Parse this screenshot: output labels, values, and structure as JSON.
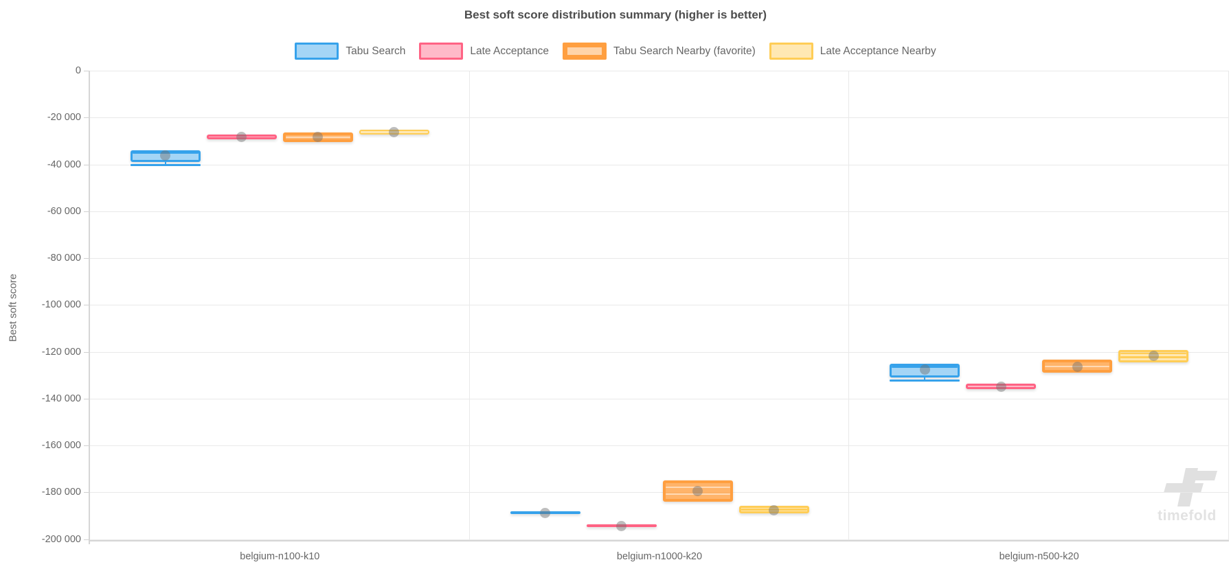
{
  "chart_data": {
    "type": "boxplot",
    "title": "Best soft score distribution summary (higher is better)",
    "ylabel": "Best soft score",
    "ylim": [
      -200000,
      0
    ],
    "grid": true,
    "legend_position": "top",
    "watermark_text": "timefold",
    "yticks": [
      {
        "value": 0,
        "label": "0"
      },
      {
        "value": -20000,
        "label": "-20 000"
      },
      {
        "value": -40000,
        "label": "-40 000"
      },
      {
        "value": -60000,
        "label": "-60 000"
      },
      {
        "value": -80000,
        "label": "-80 000"
      },
      {
        "value": -100000,
        "label": "-100 000"
      },
      {
        "value": -120000,
        "label": "-120 000"
      },
      {
        "value": -140000,
        "label": "-140 000"
      },
      {
        "value": -160000,
        "label": "-160 000"
      },
      {
        "value": -180000,
        "label": "-180 000"
      },
      {
        "value": -200000,
        "label": "-200 000"
      }
    ],
    "categories": [
      "belgium-n100-k10",
      "belgium-n1000-k20",
      "belgium-n500-k20"
    ],
    "series": [
      {
        "name": "Tabu Search",
        "color": "#36A2EB",
        "fill": "rgba(54,162,235,0.45)",
        "legend_fill": "rgba(54,162,235,0.45)",
        "favorite": false,
        "boxes": [
          {
            "q1": -39000,
            "q3": -34000,
            "median": -35000,
            "mean": -36100,
            "whisker_low": -40200
          },
          {
            "q1": -189400,
            "q3": -188100,
            "median": -188700,
            "mean": -188900
          },
          {
            "q1": -131100,
            "q3": -125200,
            "median": -126400,
            "mean": -127600,
            "whisker_low": -132200
          }
        ]
      },
      {
        "name": "Late Acceptance",
        "color": "#FF6384",
        "fill": "rgba(255,99,132,0.45)",
        "legend_fill": "rgba(255,99,132,0.45)",
        "favorite": false,
        "boxes": [
          {
            "q1": -29300,
            "q3": -27200,
            "median": -28200,
            "mean": -28400
          },
          {
            "q1": -194900,
            "q3": -193800,
            "median": -194300,
            "mean": -194400
          },
          {
            "q1": -136000,
            "q3": -133700,
            "median": -134900,
            "mean": -135000
          }
        ]
      },
      {
        "name": "Tabu Search Nearby (favorite)",
        "color": "#FF9F40",
        "fill": "rgba(255,159,64,0.78)",
        "legend_fill": "rgba(255,159,64,0.45)",
        "favorite": true,
        "median_color": "rgba(255,255,255,0.5)",
        "boxes": [
          {
            "q1": -30400,
            "q3": -26300,
            "median": -28300,
            "mean": -28200
          },
          {
            "q1": -184000,
            "q3": -174900,
            "median": -180800,
            "mean": -179500,
            "extra_line": -177800
          },
          {
            "q1": -128900,
            "q3": -123500,
            "median": -126300,
            "mean": -126500
          }
        ]
      },
      {
        "name": "Late Acceptance Nearby",
        "color": "#FFCD56",
        "fill": "rgba(255,205,86,0.45)",
        "legend_fill": "rgba(255,205,86,0.45)",
        "favorite": false,
        "boxes": [
          {
            "q1": -27200,
            "q3": -25300,
            "median": -26200,
            "mean": -26200
          },
          {
            "q1": -188900,
            "q3": -185800,
            "median": -187300,
            "mean": -187600
          },
          {
            "q1": -124500,
            "q3": -119300,
            "median": -122200,
            "mean": -121700,
            "extra_line": -120700
          }
        ]
      }
    ]
  }
}
